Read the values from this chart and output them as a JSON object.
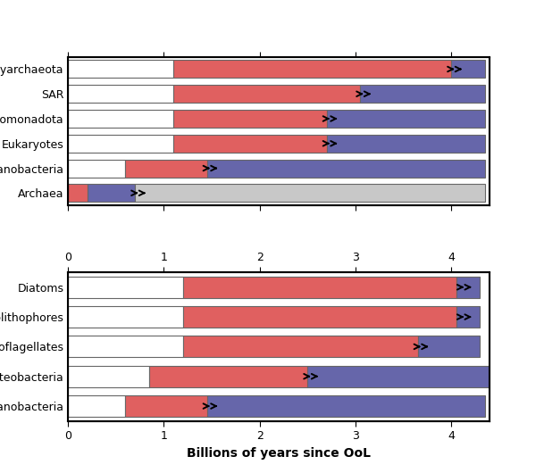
{
  "top_panel": {
    "organisms": [
      "Euryarchaeota",
      "SAR",
      "Pseudomonadota",
      "Eukaryotes",
      "Cyanobacteria",
      "Archaea"
    ],
    "segments": [
      {
        "white": 1.1,
        "red": 2.9,
        "arrow_at": 4.0,
        "blue": 0.35
      },
      {
        "white": 1.1,
        "red": 1.95,
        "arrow_at": 3.05,
        "blue": 1.3
      },
      {
        "white": 1.1,
        "red": 1.6,
        "arrow_at": 2.7,
        "blue": 1.65
      },
      {
        "white": 1.1,
        "red": 1.6,
        "arrow_at": 2.7,
        "blue": 1.65
      },
      {
        "white": 0.6,
        "red": 0.85,
        "arrow_at": 1.45,
        "blue": 2.9
      },
      {
        "white": 0.0,
        "red": 0.2,
        "arrow_at": 0.7,
        "blue": 0.5,
        "gray": 3.65
      }
    ],
    "is_archaea": [
      false,
      false,
      false,
      false,
      false,
      true
    ]
  },
  "bottom_panel": {
    "organisms": [
      "Diatoms",
      "Coccolithophores",
      "Dinoflagellates",
      "Gammaproteobacteria",
      "Cyanobacteria"
    ],
    "segments": [
      {
        "white": 1.2,
        "red": 2.85,
        "arrow_at": 4.1,
        "blue": 0.25
      },
      {
        "white": 1.2,
        "red": 2.85,
        "arrow_at": 4.1,
        "blue": 0.25
      },
      {
        "white": 1.2,
        "red": 2.45,
        "arrow_at": 3.65,
        "blue": 0.65
      },
      {
        "white": 0.85,
        "red": 1.65,
        "arrow_at": 2.5,
        "blue": 1.9
      },
      {
        "white": 0.6,
        "red": 0.85,
        "arrow_at": 1.45,
        "blue": 2.9
      }
    ],
    "is_archaea": [
      false,
      false,
      false,
      false,
      false
    ]
  },
  "xlim": [
    0,
    4.4
  ],
  "xticks": [
    0,
    1,
    2,
    3,
    4
  ],
  "xlabel": "Billions of years since OoL",
  "colors": {
    "white": "#ffffff",
    "red": "#e06060",
    "blue": "#6666aa",
    "gray": "#c8c8c8"
  },
  "bar_height": 0.72,
  "edge_color": "#666666",
  "background": "#ffffff"
}
